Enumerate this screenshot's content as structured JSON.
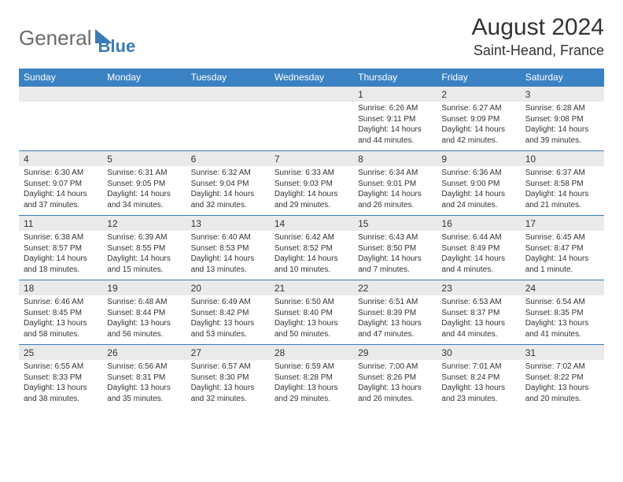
{
  "brand": {
    "word1": "General",
    "word2": "Blue"
  },
  "title": "August 2024",
  "location": "Saint-Heand, France",
  "colors": {
    "header_bg": "#3b82c4",
    "header_text": "#ffffff",
    "date_bg": "#eaeaea",
    "border": "#3b7bb5",
    "text": "#333333",
    "logo_gray": "#6b6b6b",
    "logo_blue": "#3b7bb5"
  },
  "days_of_week": [
    "Sunday",
    "Monday",
    "Tuesday",
    "Wednesday",
    "Thursday",
    "Friday",
    "Saturday"
  ],
  "weeks": [
    {
      "dates": [
        "",
        "",
        "",
        "",
        "1",
        "2",
        "3"
      ],
      "info": [
        "",
        "",
        "",
        "",
        "Sunrise: 6:26 AM\nSunset: 9:11 PM\nDaylight: 14 hours and 44 minutes.",
        "Sunrise: 6:27 AM\nSunset: 9:09 PM\nDaylight: 14 hours and 42 minutes.",
        "Sunrise: 6:28 AM\nSunset: 9:08 PM\nDaylight: 14 hours and 39 minutes."
      ]
    },
    {
      "dates": [
        "4",
        "5",
        "6",
        "7",
        "8",
        "9",
        "10"
      ],
      "info": [
        "Sunrise: 6:30 AM\nSunset: 9:07 PM\nDaylight: 14 hours and 37 minutes.",
        "Sunrise: 6:31 AM\nSunset: 9:05 PM\nDaylight: 14 hours and 34 minutes.",
        "Sunrise: 6:32 AM\nSunset: 9:04 PM\nDaylight: 14 hours and 32 minutes.",
        "Sunrise: 6:33 AM\nSunset: 9:03 PM\nDaylight: 14 hours and 29 minutes.",
        "Sunrise: 6:34 AM\nSunset: 9:01 PM\nDaylight: 14 hours and 26 minutes.",
        "Sunrise: 6:36 AM\nSunset: 9:00 PM\nDaylight: 14 hours and 24 minutes.",
        "Sunrise: 6:37 AM\nSunset: 8:58 PM\nDaylight: 14 hours and 21 minutes."
      ]
    },
    {
      "dates": [
        "11",
        "12",
        "13",
        "14",
        "15",
        "16",
        "17"
      ],
      "info": [
        "Sunrise: 6:38 AM\nSunset: 8:57 PM\nDaylight: 14 hours and 18 minutes.",
        "Sunrise: 6:39 AM\nSunset: 8:55 PM\nDaylight: 14 hours and 15 minutes.",
        "Sunrise: 6:40 AM\nSunset: 8:53 PM\nDaylight: 14 hours and 13 minutes.",
        "Sunrise: 6:42 AM\nSunset: 8:52 PM\nDaylight: 14 hours and 10 minutes.",
        "Sunrise: 6:43 AM\nSunset: 8:50 PM\nDaylight: 14 hours and 7 minutes.",
        "Sunrise: 6:44 AM\nSunset: 8:49 PM\nDaylight: 14 hours and 4 minutes.",
        "Sunrise: 6:45 AM\nSunset: 8:47 PM\nDaylight: 14 hours and 1 minute."
      ]
    },
    {
      "dates": [
        "18",
        "19",
        "20",
        "21",
        "22",
        "23",
        "24"
      ],
      "info": [
        "Sunrise: 6:46 AM\nSunset: 8:45 PM\nDaylight: 13 hours and 58 minutes.",
        "Sunrise: 6:48 AM\nSunset: 8:44 PM\nDaylight: 13 hours and 56 minutes.",
        "Sunrise: 6:49 AM\nSunset: 8:42 PM\nDaylight: 13 hours and 53 minutes.",
        "Sunrise: 6:50 AM\nSunset: 8:40 PM\nDaylight: 13 hours and 50 minutes.",
        "Sunrise: 6:51 AM\nSunset: 8:39 PM\nDaylight: 13 hours and 47 minutes.",
        "Sunrise: 6:53 AM\nSunset: 8:37 PM\nDaylight: 13 hours and 44 minutes.",
        "Sunrise: 6:54 AM\nSunset: 8:35 PM\nDaylight: 13 hours and 41 minutes."
      ]
    },
    {
      "dates": [
        "25",
        "26",
        "27",
        "28",
        "29",
        "30",
        "31"
      ],
      "info": [
        "Sunrise: 6:55 AM\nSunset: 8:33 PM\nDaylight: 13 hours and 38 minutes.",
        "Sunrise: 6:56 AM\nSunset: 8:31 PM\nDaylight: 13 hours and 35 minutes.",
        "Sunrise: 6:57 AM\nSunset: 8:30 PM\nDaylight: 13 hours and 32 minutes.",
        "Sunrise: 6:59 AM\nSunset: 8:28 PM\nDaylight: 13 hours and 29 minutes.",
        "Sunrise: 7:00 AM\nSunset: 8:26 PM\nDaylight: 13 hours and 26 minutes.",
        "Sunrise: 7:01 AM\nSunset: 8:24 PM\nDaylight: 13 hours and 23 minutes.",
        "Sunrise: 7:02 AM\nSunset: 8:22 PM\nDaylight: 13 hours and 20 minutes."
      ]
    }
  ]
}
